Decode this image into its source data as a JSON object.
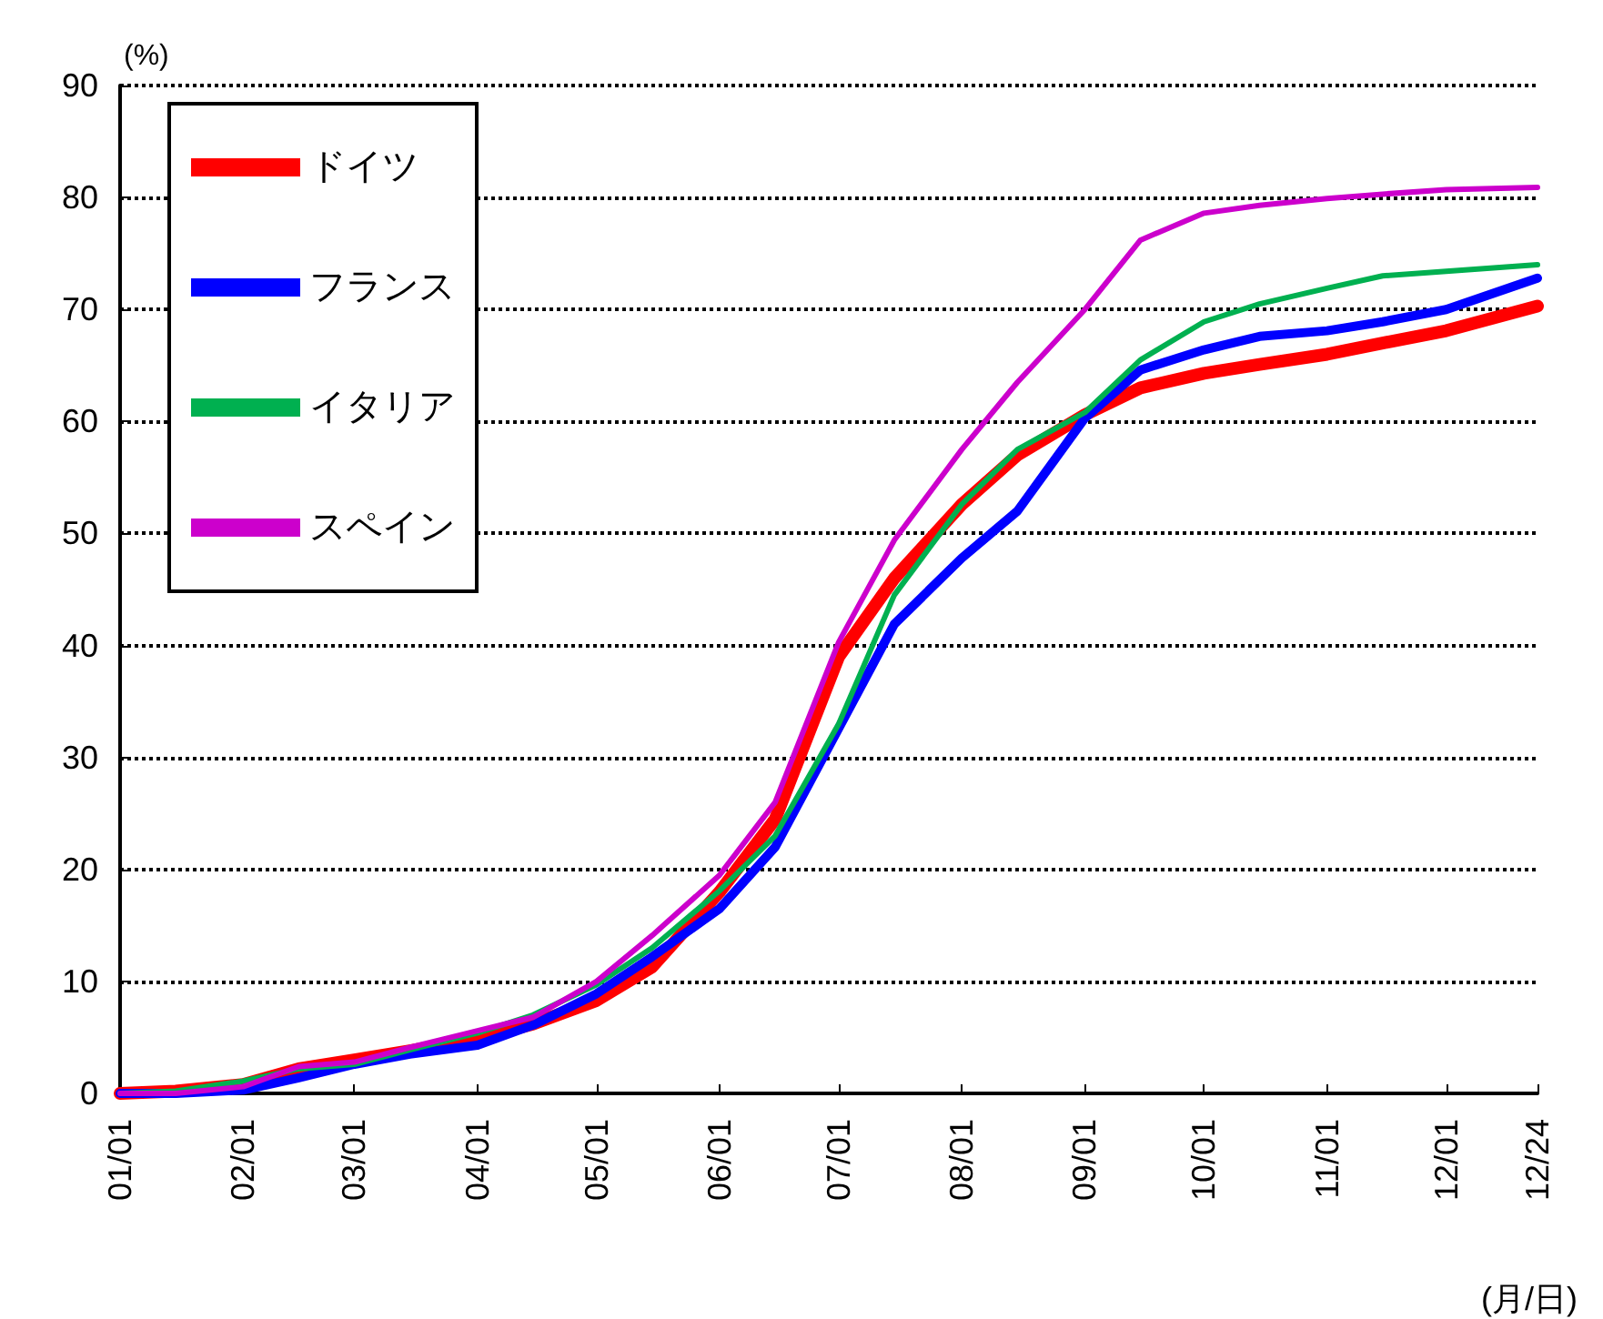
{
  "chart_data": {
    "type": "line",
    "ylabel": "(%)",
    "xlabel": "(月/日)",
    "x": [
      "--01-01",
      "--01-15",
      "--02-01",
      "--02-15",
      "--03-01",
      "--03-15",
      "--04-01",
      "--04-15",
      "--05-01",
      "--05-15",
      "--06-01",
      "--06-15",
      "--07-01",
      "--07-15",
      "--08-01",
      "--08-15",
      "--09-01",
      "--09-15",
      "--10-01",
      "--10-15",
      "--11-01",
      "--11-15",
      "--12-01",
      "--12-24"
    ],
    "series": [
      {
        "name": "ドイツ",
        "color": "#ff0000",
        "values": [
          0,
          0.2,
          0.8,
          2.2,
          3.0,
          3.8,
          4.9,
          6.2,
          8.3,
          11.3,
          18,
          24.5,
          39,
          46,
          52.6,
          57,
          60.6,
          63,
          64.3,
          65.1,
          66,
          67,
          68.1,
          70.3
        ]
      },
      {
        "name": "フランス",
        "color": "#0000ff",
        "values": [
          0,
          0,
          0.3,
          1.4,
          2.6,
          3.5,
          4.3,
          6.1,
          8.9,
          12.2,
          16.5,
          22,
          32.6,
          41.9,
          47.8,
          52,
          60.3,
          64.6,
          66.4,
          67.6,
          68.1,
          68.9,
          70,
          72.8
        ]
      },
      {
        "name": "イタリア",
        "color": "#00b050",
        "values": [
          0,
          0.2,
          1.1,
          2.2,
          2.6,
          3.9,
          5.4,
          7.0,
          9.7,
          13,
          18.1,
          23,
          33,
          44.5,
          52.6,
          57.5,
          60.8,
          65.5,
          68.9,
          70.5,
          71.9,
          73,
          73.4,
          74
        ]
      },
      {
        "name": "スペイン",
        "color": "#cc00cc",
        "values": [
          0,
          0,
          0.6,
          2.4,
          2.8,
          4.1,
          5.6,
          6.8,
          10,
          14.1,
          19.5,
          26,
          40.3,
          49.4,
          57.5,
          63.5,
          70,
          76.2,
          78.6,
          79.3,
          79.9,
          80.3,
          80.7,
          80.9
        ]
      }
    ],
    "xlim": [
      "--01-01",
      "--12-24"
    ],
    "xticks": [
      {
        "value": "--01-01",
        "label": "01/01"
      },
      {
        "value": "--02-01",
        "label": "02/01"
      },
      {
        "value": "--03-01",
        "label": "03/01"
      },
      {
        "value": "--04-01",
        "label": "04/01"
      },
      {
        "value": "--05-01",
        "label": "05/01"
      },
      {
        "value": "--06-01",
        "label": "06/01"
      },
      {
        "value": "--07-01",
        "label": "07/01"
      },
      {
        "value": "--08-01",
        "label": "08/01"
      },
      {
        "value": "--09-01",
        "label": "09/01"
      },
      {
        "value": "--10-01",
        "label": "10/01"
      },
      {
        "value": "--11-01",
        "label": "11/01"
      },
      {
        "value": "--12-01",
        "label": "12/01"
      },
      {
        "value": "--12-24",
        "label": "12/24"
      }
    ],
    "ylim": [
      0,
      90
    ],
    "yticks": [
      0,
      10,
      20,
      30,
      40,
      50,
      60,
      70,
      80,
      90
    ],
    "grid": "y",
    "legend": "top left",
    "marker": "none",
    "line_style": "solid"
  }
}
